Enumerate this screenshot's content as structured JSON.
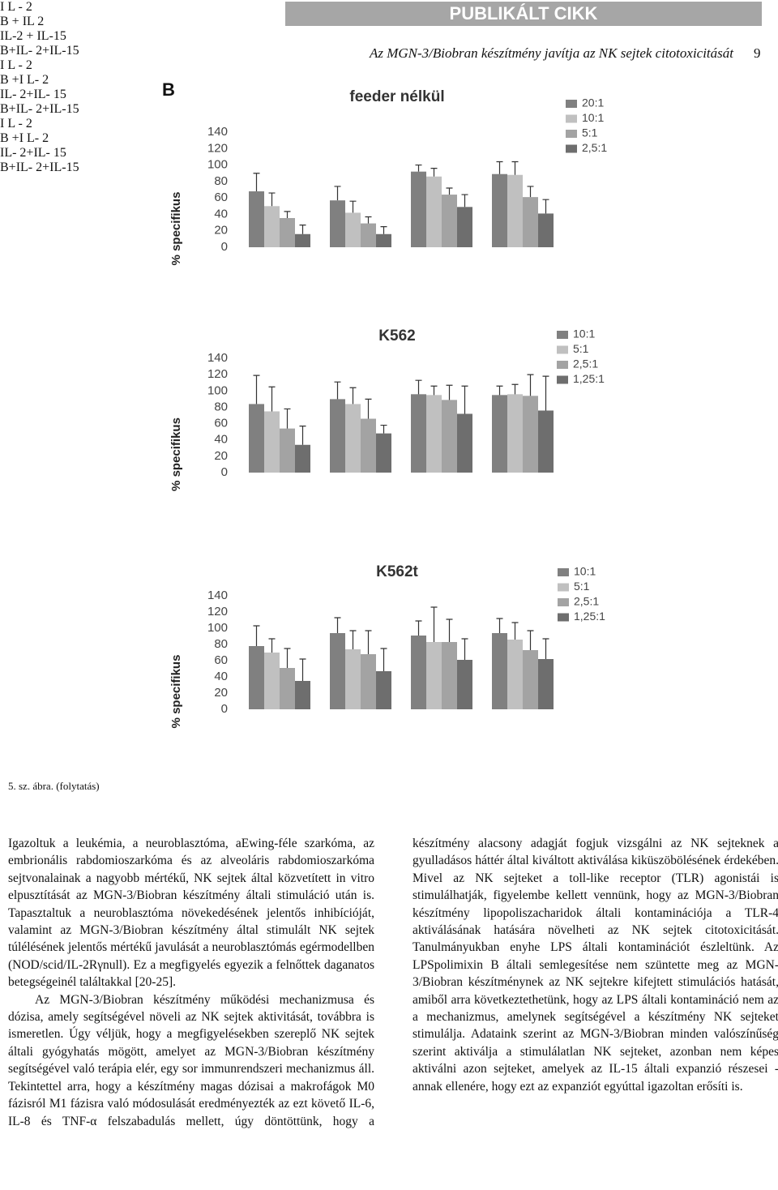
{
  "header": {
    "banner": "PUBLIKÁLT CIKK",
    "running_title": "Az MGN-3/Biobran készítmény javítja az NK sejtek citotoxicitását",
    "page_number": "9"
  },
  "panel_label": "B",
  "chart_data": [
    {
      "type": "bar",
      "title": "feeder nélkül",
      "y_label": "% specifikus",
      "categories": [
        "I\nL\n-\n2",
        "B\n+\nIL\n2",
        "IL-2 +\nIL-15",
        "B+IL-\n2+IL-15"
      ],
      "series": [
        {
          "name": "20:1",
          "color": "#808080",
          "values": [
            68,
            57,
            92,
            89
          ],
          "errors": [
            22,
            17,
            8,
            15
          ]
        },
        {
          "name": "10:1",
          "color": "#c0c0c0",
          "values": [
            50,
            42,
            86,
            88
          ],
          "errors": [
            16,
            14,
            10,
            16
          ]
        },
        {
          "name": "5:1",
          "color": "#a3a3a3",
          "values": [
            35.5,
            29,
            64,
            61
          ],
          "errors": [
            8,
            8,
            8,
            13
          ]
        },
        {
          "name": "2,5:1",
          "color": "#6e6e6e",
          "values": [
            16,
            16,
            49,
            41
          ],
          "errors": [
            11,
            9,
            15,
            17
          ]
        }
      ],
      "ylim": [
        0,
        140
      ],
      "yticks": [
        0,
        20,
        40,
        60,
        80,
        100,
        120,
        140
      ],
      "grid": false,
      "legend": "right"
    },
    {
      "type": "bar",
      "title": "K562",
      "y_label": "% specifikus",
      "categories": [
        "I\nL\n-\n2",
        "B\n+I\nL-\n2",
        "IL-\n2+IL-\n15",
        "B+IL-\n2+IL-15"
      ],
      "series": [
        {
          "name": "10:1",
          "color": "#808080",
          "values": [
            84,
            90,
            96,
            95
          ],
          "errors": [
            35,
            21,
            17,
            11
          ]
        },
        {
          "name": "5:1",
          "color": "#c0c0c0",
          "values": [
            75,
            84,
            95,
            96
          ],
          "errors": [
            30,
            20,
            11,
            12
          ]
        },
        {
          "name": "2,5:1",
          "color": "#a3a3a3",
          "values": [
            54,
            66,
            89,
            94
          ],
          "errors": [
            24,
            24,
            18,
            26
          ]
        },
        {
          "name": "1,25:1",
          "color": "#6e6e6e",
          "values": [
            34,
            48,
            72,
            76
          ],
          "errors": [
            23,
            10,
            34,
            42
          ]
        }
      ],
      "ylim": [
        0,
        140
      ],
      "yticks": [
        0,
        20,
        40,
        60,
        80,
        100,
        120,
        140
      ],
      "grid": false,
      "legend": "right"
    },
    {
      "type": "bar",
      "title": "K562t",
      "y_label": "% specifikus",
      "categories": [
        "I\nL\n-\n2",
        "B\n+I\nL-\n2",
        "IL-\n2+IL-\n15",
        "B+IL-\n2+IL-15"
      ],
      "series": [
        {
          "name": "10:1",
          "color": "#808080",
          "values": [
            78,
            94,
            91,
            94
          ],
          "errors": [
            25,
            19,
            18,
            18
          ]
        },
        {
          "name": "5:1",
          "color": "#c0c0c0",
          "values": [
            70,
            74,
            83,
            86
          ],
          "errors": [
            17,
            23,
            43,
            21
          ]
        },
        {
          "name": "2,5:1",
          "color": "#a3a3a3",
          "values": [
            51,
            68,
            83,
            73
          ],
          "errors": [
            24,
            29,
            28,
            24
          ]
        },
        {
          "name": "1,25:1",
          "color": "#6e6e6e",
          "values": [
            35,
            47,
            61,
            62
          ],
          "errors": [
            27,
            28,
            26,
            25
          ]
        }
      ],
      "ylim": [
        0,
        140
      ],
      "yticks": [
        0,
        20,
        40,
        60,
        80,
        100,
        120,
        140
      ],
      "grid": false,
      "legend": "right"
    }
  ],
  "caption": "5. sz. ábra. (folytatás)",
  "body": {
    "left": [
      "Igazoltuk a leukémia, a neuroblasztóma, aEwing-féle szarkóma, az embrionális rabdomioszarkóma és az alveoláris rabdomioszarkóma sejtvonalainak a nagyobb mértékű, NK sejtek által közvetített in vitro elpusztítását az MGN-3/Biobran készítmény általi stimuláció után is. Tapasztaltuk a neuroblasztóma növekedésének jelentős inhibícióját, valamint az MGN-3/Biobran készítmény által stimulált NK sejtek túlélésének jelentős mértékű javulását a neuroblasztómás egérmodellben (NOD/scid/IL-2Rγnull). Ez a megfigyelés egyezik a felnőttek daganatos betegségeinél találtakkal [20-25].",
      "Az MGN-3/Biobran készítmény működési mechanizmusa és dózisa, amely segítségével növeli az NK sejtek aktivitását, továbbra is ismeretlen. Úgy véljük, hogy a megfigyelésekben szereplő NK sejtek általi gyógyhatás mögött, amelyet az MGN-3/Biobran készítmény segítségével való terápia elér, egy sor immunrendszeri mechanizmus áll. Tekintettel arra, hogy a készítmény magas dózisai a makrofágok M0 fázisról M1 fázisra való módosulását eredményezték az ezt követő IL-6, IL-8 és TNF-α felszabadulás mellett, úgy döntöttünk, hogy a"
    ],
    "right": [
      "készítmény alacsony adagját fogjuk vizsgálni az NK sejteknek a gyulladásos háttér által kiváltott aktiválása kiküszöbölésének érdekében. Mivel az NK sejteket a toll-like receptor (TLR) agonistái is stimulálhatják, figyelembe kellett vennünk, hogy az MGN-3/Biobran készítmény lipopoliszacharidok általi kontaminációja a TLR-4 aktiválásának hatására növelheti az NK sejtek citotoxicitását. Tanulmányukban enyhe LPS általi kontaminációt észleltünk. Az LPSpolimixin B általi semlegesítése nem szüntette meg az MGN-3/Biobran készítménynek az NK sejtekre kifejtett stimulációs hatását, amiből arra következtethetünk, hogy az LPS általi kontamináció nem az a mechanizmus, amelynek segítségével a készítmény NK sejteket stimulálja. Adataink szerint az MGN-3/Biobran minden valószínűség szerint aktiválja a stimulálatlan NK sejteket, azonban nem képes aktiválni azon sejteket, amelyek az IL-15 általi expanzió részesei - annak ellenére, hogy ezt az expanziót egyúttal igazoltan erősíti is."
    ]
  }
}
